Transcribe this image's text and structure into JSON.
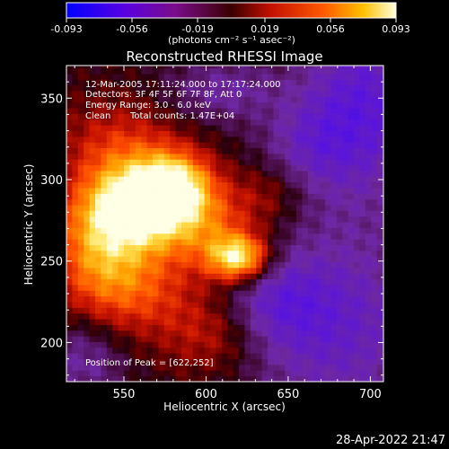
{
  "colorbar": {
    "tick_labels": [
      "-0.093",
      "-0.056",
      "-0.019",
      "0.019",
      "0.056",
      "0.093"
    ],
    "range": [
      -0.093,
      0.093
    ],
    "units_text": "(photons cm⁻² s⁻¹ asec⁻²)"
  },
  "chart_data": {
    "type": "heatmap",
    "title": "Reconstructed RHESSI Image",
    "xlabel": "Heliocentric X (arcsec)",
    "ylabel": "Heliocentric Y (arcsec)",
    "xlim": [
      515,
      708
    ],
    "ylim": [
      176,
      370
    ],
    "x_ticks": [
      "550",
      "600",
      "650",
      "700"
    ],
    "y_ticks": [
      "200",
      "250",
      "300",
      "350"
    ],
    "x_tick_values": [
      550,
      600,
      650,
      700
    ],
    "y_tick_values": [
      200,
      250,
      300,
      350
    ],
    "annotations": [
      "12-Mar-2005 17:11:24.000 to 17:17:24.000",
      "Detectors: 3F 4F 5F 6F 7F 8F, Att 0",
      "Energy Range: 3.0 - 6.0 keV",
      "Clean",
      "Total counts: 1.47E+04"
    ],
    "peak_label": "Position of Peak = [622,252]",
    "peak_position": [
      622,
      252
    ]
  },
  "footer": {
    "timestamp": "28-Apr-2022 21:47"
  }
}
